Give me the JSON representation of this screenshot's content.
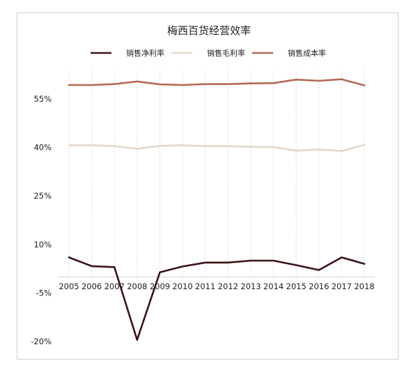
{
  "chart_data": {
    "type": "line",
    "title": "梅西百货经营效率",
    "x": [
      "2005",
      "2006",
      "2007",
      "2008",
      "2009",
      "2010",
      "2011",
      "2012",
      "2013",
      "2014",
      "2015",
      "2016",
      "2017",
      "2018"
    ],
    "ylim": [
      -20,
      60
    ],
    "yticks": [
      -20,
      -5,
      10,
      25,
      40,
      55
    ],
    "ytick_labels": [
      "-20%",
      "-5%",
      "10%",
      "25%",
      "40%",
      "55%"
    ],
    "grid": "vertical-dashed",
    "legend_position": "top",
    "series": [
      {
        "name": "销售净利率",
        "color": "#3a1416",
        "values": [
          6.0,
          3.3,
          3.0,
          -19.5,
          1.4,
          3.2,
          4.4,
          4.4,
          5.0,
          5.0,
          3.6,
          2.1,
          6.0,
          4.0
        ]
      },
      {
        "name": "销售毛利率",
        "color": "#e3d7c9",
        "values": [
          40.7,
          40.7,
          40.4,
          39.6,
          40.5,
          40.7,
          40.4,
          40.4,
          40.2,
          40.1,
          39.0,
          39.4,
          38.9,
          40.8
        ]
      },
      {
        "name": "销售成本率",
        "color": "#b36a54",
        "values": [
          59.3,
          59.3,
          59.6,
          60.4,
          59.5,
          59.3,
          59.6,
          59.6,
          59.8,
          59.9,
          61.0,
          60.6,
          61.1,
          59.2
        ]
      }
    ]
  }
}
